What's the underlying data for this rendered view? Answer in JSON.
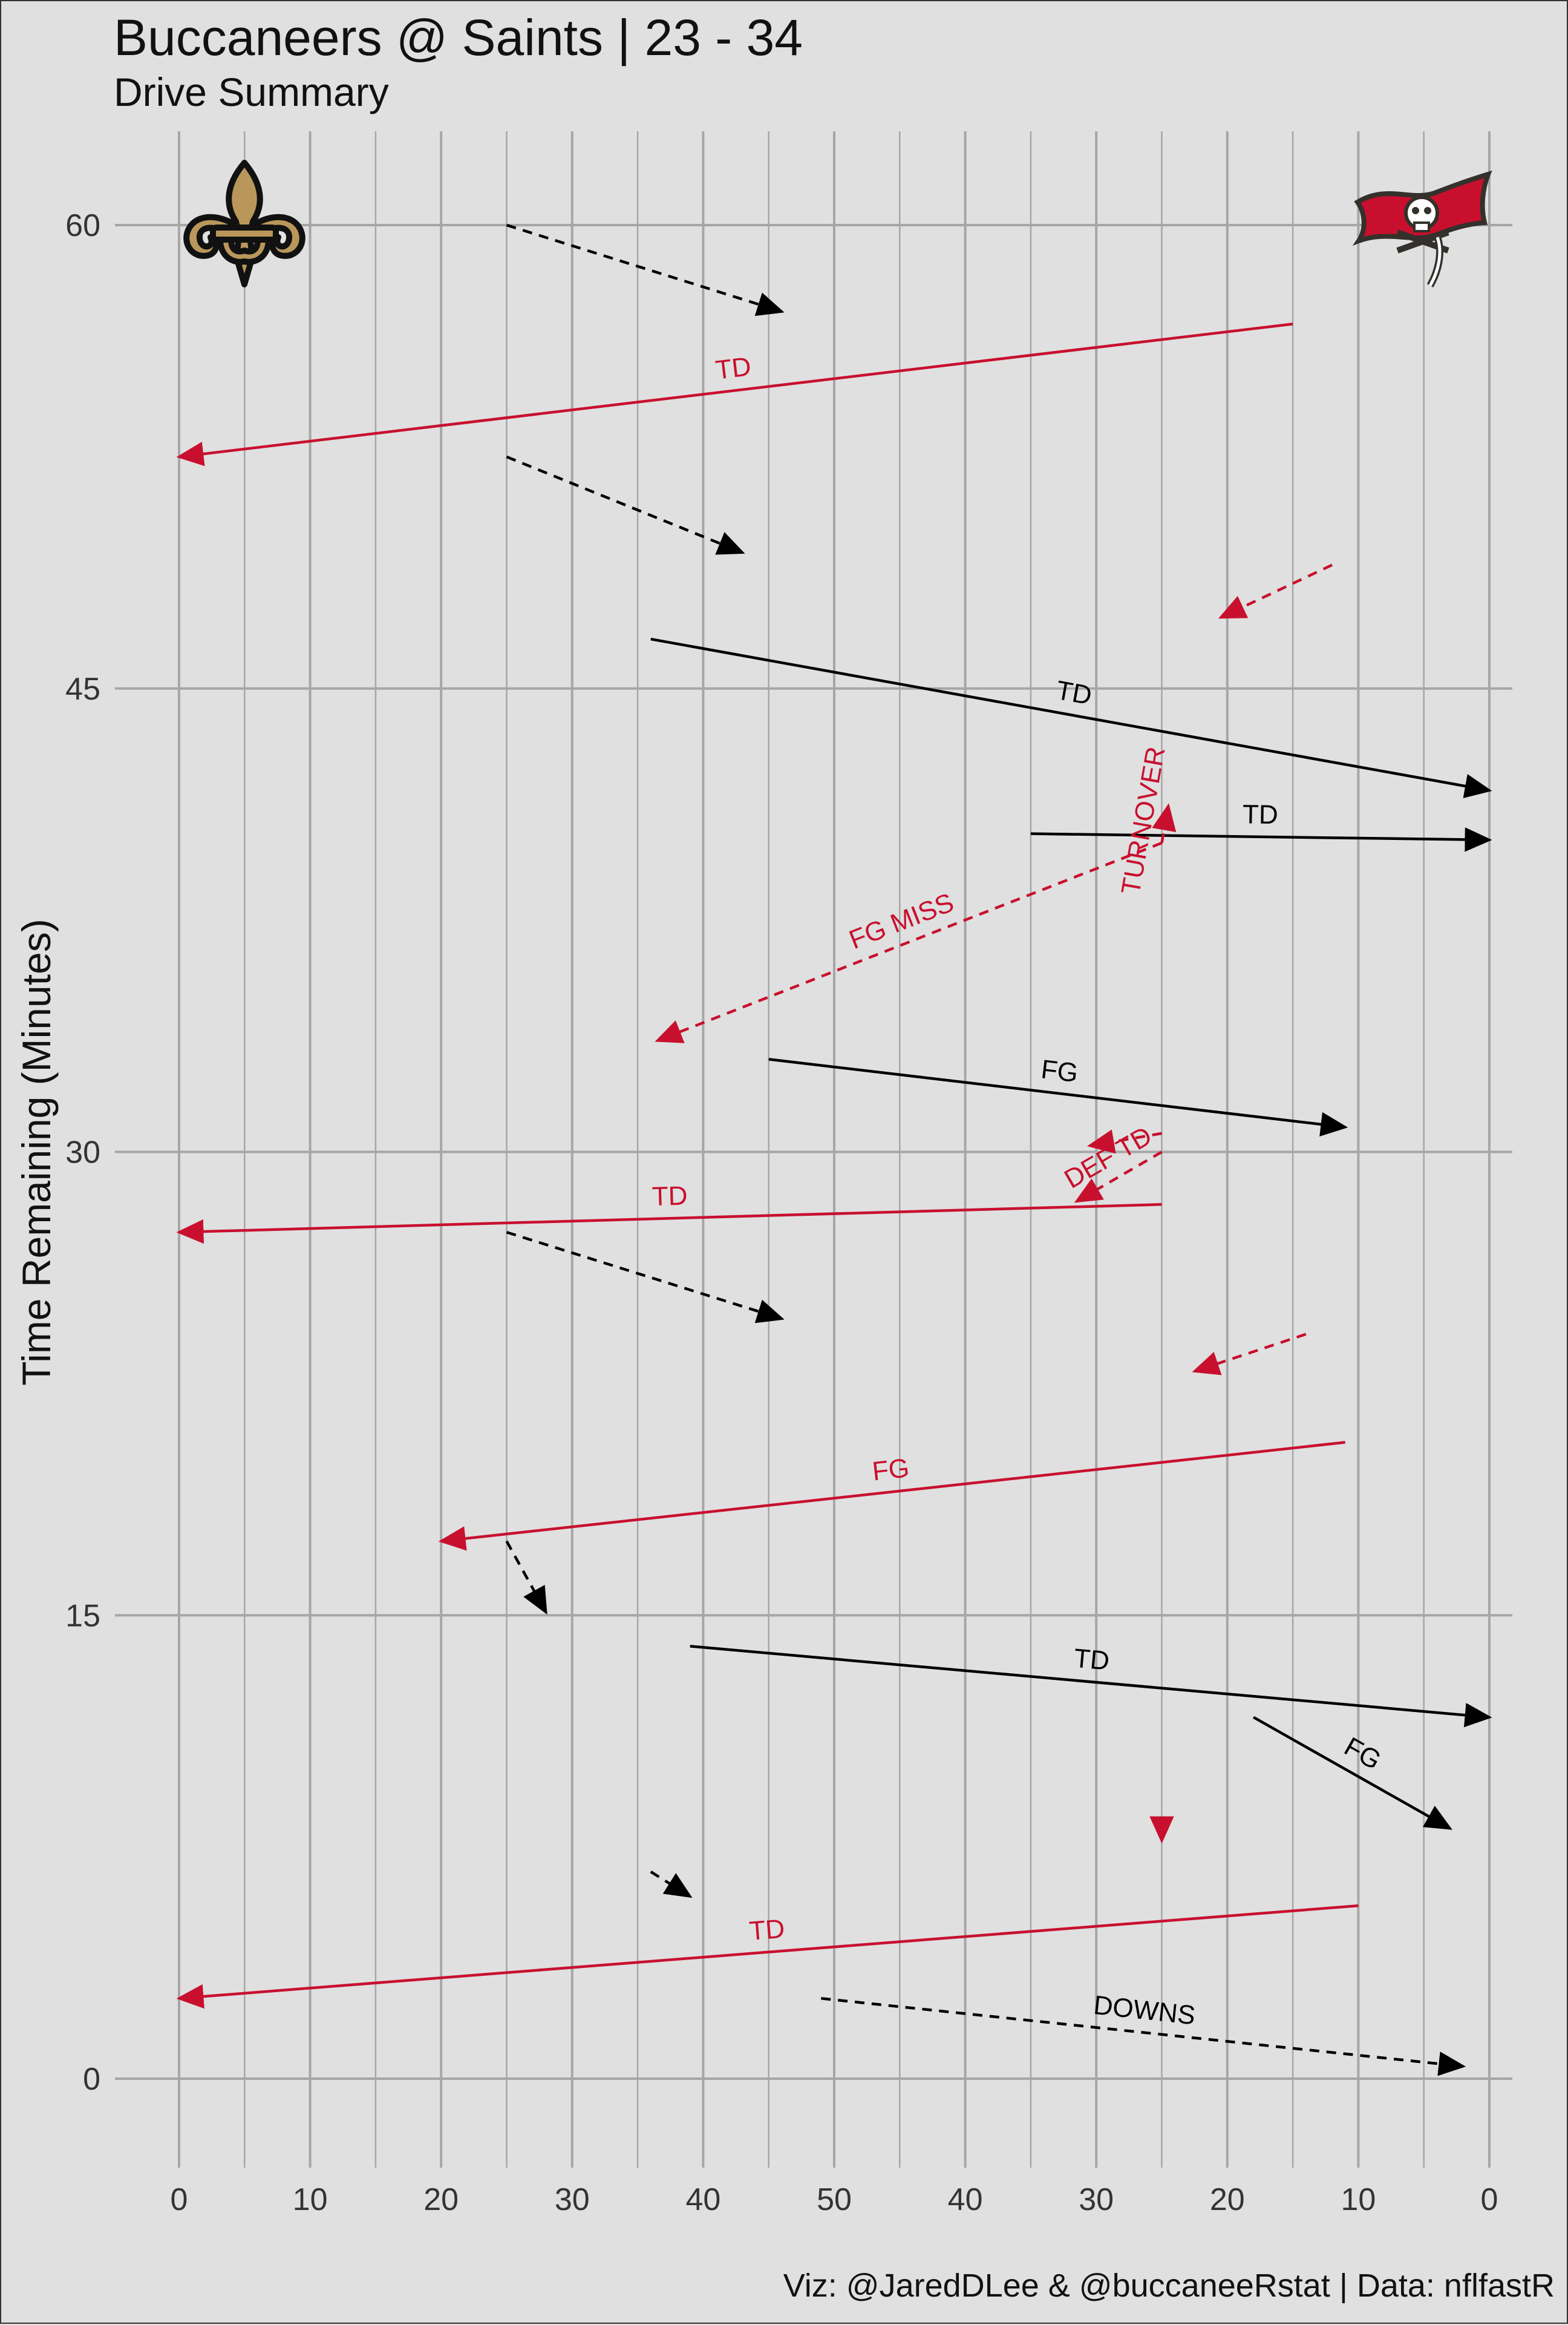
{
  "title": "Buccaneers @ Saints | 23 - 34",
  "subtitle": "Drive Summary",
  "caption": "Viz: @JaredDLee & @buccaneeRstat | Data: nflfastR",
  "colors": {
    "background": "#e0e0e0",
    "grid": "#a6a6a6",
    "saints_drive": "#000000",
    "buccaneers_drive": "#c8102e",
    "saints_gold": "#b9975b",
    "bucs_red": "#c8102e",
    "bucs_pewter": "#34302b"
  },
  "logos": {
    "left": "saints-fleur-de-lis-logo",
    "right": "buccaneers-flag-logo"
  },
  "chart_data": {
    "type": "line",
    "title": "Buccaneers @ Saints | 23 - 34",
    "subtitle": "Drive Summary",
    "ylabel": "Time Remaining (Minutes)",
    "xlabel": "",
    "x_tick_labels": [
      "0",
      "10",
      "20",
      "30",
      "40",
      "50",
      "40",
      "30",
      "20",
      "10",
      "0"
    ],
    "y_ticks": [
      0,
      15,
      30,
      45,
      60
    ],
    "xlim": [
      0,
      100
    ],
    "ylim": [
      0,
      60
    ],
    "grid": true,
    "series": [
      {
        "kind": "saints",
        "result": "",
        "x0": 25,
        "y0": 60,
        "x1": 46,
        "y1": 57.2,
        "dashed": true
      },
      {
        "kind": "buccaneers",
        "result": "TD",
        "x0": 85,
        "y0": 56.8,
        "x1": 0,
        "y1": 52.5,
        "dashed": false
      },
      {
        "kind": "saints",
        "result": "",
        "x0": 25,
        "y0": 52.5,
        "x1": 43,
        "y1": 49.4,
        "dashed": true
      },
      {
        "kind": "buccaneers",
        "result": "",
        "x0": 88,
        "y0": 49,
        "x1": 79.5,
        "y1": 47.3,
        "dashed": true
      },
      {
        "kind": "saints",
        "result": "TD",
        "x0": 36,
        "y0": 46.6,
        "x1": 100,
        "y1": 41.7,
        "dashed": false
      },
      {
        "kind": "saints",
        "result": "TD",
        "x0": 65,
        "y0": 40.3,
        "x1": 100,
        "y1": 40.1,
        "dashed": false
      },
      {
        "kind": "buccaneers",
        "result": "TURNOVER",
        "x0": 75,
        "y0": 40,
        "x1": 75.5,
        "y1": 41.2,
        "dashed": true
      },
      {
        "kind": "buccaneers",
        "result": "FG MISS",
        "x0": 75,
        "y0": 40,
        "x1": 36.5,
        "y1": 33.6,
        "dashed": true
      },
      {
        "kind": "saints",
        "result": "FG",
        "x0": 45,
        "y0": 33,
        "x1": 89,
        "y1": 30.8,
        "dashed": false
      },
      {
        "kind": "buccaneers",
        "result": "",
        "x0": 75,
        "y0": 30.6,
        "x1": 69.5,
        "y1": 30.2,
        "dashed": true
      },
      {
        "kind": "buccaneers",
        "result": "DEF TD",
        "x0": 75,
        "y0": 30,
        "x1": 68.5,
        "y1": 28.4,
        "dashed": true
      },
      {
        "kind": "buccaneers",
        "result": "TD",
        "x0": 75,
        "y0": 28.3,
        "x1": 0,
        "y1": 27.4,
        "dashed": false
      },
      {
        "kind": "saints",
        "result": "",
        "x0": 25,
        "y0": 27.4,
        "x1": 46,
        "y1": 24.6,
        "dashed": true
      },
      {
        "kind": "buccaneers",
        "result": "",
        "x0": 86,
        "y0": 24.1,
        "x1": 77.5,
        "y1": 22.9,
        "dashed": true
      },
      {
        "kind": "buccaneers",
        "result": "FG",
        "x0": 89,
        "y0": 20.6,
        "x1": 20,
        "y1": 17.4,
        "dashed": false
      },
      {
        "kind": "saints",
        "result": "",
        "x0": 25,
        "y0": 17.4,
        "x1": 28,
        "y1": 15.1,
        "dashed": true
      },
      {
        "kind": "saints",
        "result": "TD",
        "x0": 39,
        "y0": 14,
        "x1": 100,
        "y1": 11.7,
        "dashed": false
      },
      {
        "kind": "saints",
        "result": "FG",
        "x0": 82,
        "y0": 11.7,
        "x1": 97,
        "y1": 8.1,
        "dashed": false
      },
      {
        "kind": "buccaneers",
        "result": "",
        "x0": 75,
        "y0": 8.2,
        "x1": 75,
        "y1": 7.7,
        "dashed": true
      },
      {
        "kind": "saints",
        "result": "",
        "x0": 36,
        "y0": 6.7,
        "x1": 39,
        "y1": 5.9,
        "dashed": true
      },
      {
        "kind": "buccaneers",
        "result": "TD",
        "x0": 90,
        "y0": 5.6,
        "x1": 0,
        "y1": 2.6,
        "dashed": false
      },
      {
        "kind": "saints",
        "result": "DOWNS",
        "x0": 49,
        "y0": 2.6,
        "x1": 98,
        "y1": 0.4,
        "dashed": true
      }
    ]
  }
}
